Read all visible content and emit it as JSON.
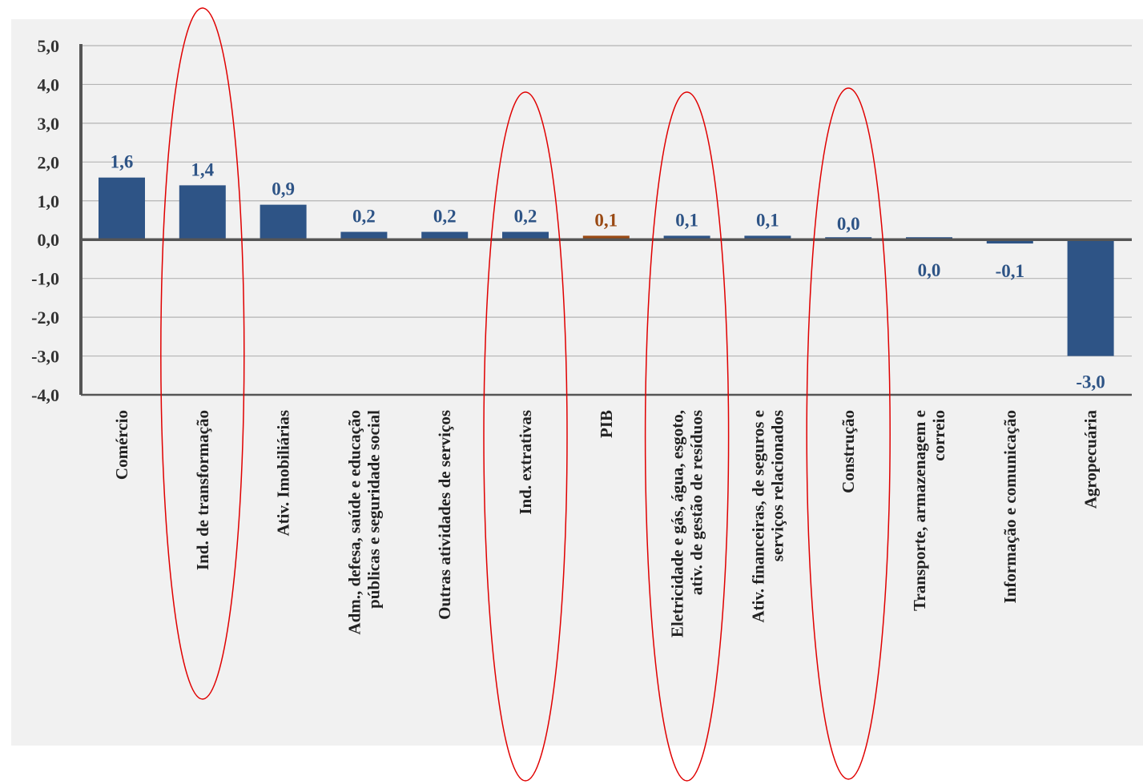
{
  "chart_data": {
    "type": "bar",
    "categories": [
      [
        "Comércio"
      ],
      [
        "Ind. de transformação"
      ],
      [
        "Ativ. Imobiliárias"
      ],
      [
        "Adm., defesa, saúde e educação",
        "públicas e seguridade social"
      ],
      [
        "Outras atividades de serviços"
      ],
      [
        "Ind. extrativas"
      ],
      [
        "PIB"
      ],
      [
        "Eletricidade e gás, água, esgoto,",
        "ativ. de gestão de resíduos"
      ],
      [
        "Ativ. financeiras, de seguros e",
        "serviços relacionados"
      ],
      [
        "Construção"
      ],
      [
        "Transporte, armazenagem e",
        "correio"
      ],
      [
        "Informação e comunicação"
      ],
      [
        "Agropecuária"
      ]
    ],
    "values": [
      1.6,
      1.4,
      0.9,
      0.2,
      0.2,
      0.2,
      0.1,
      0.1,
      0.1,
      0.0,
      0.0,
      -0.1,
      -3.0
    ],
    "value_labels": [
      "1,6",
      "1,4",
      "0,9",
      "0,2",
      "0,2",
      "0,2",
      "0,1",
      "0,1",
      "0,1",
      "0,0",
      "0,0",
      "-0,1",
      "-3,0"
    ],
    "highlight_index": 6,
    "ylim": [
      -4,
      5
    ],
    "yticks": [
      5,
      4,
      3,
      2,
      1,
      0,
      -1,
      -2,
      -3,
      -4
    ],
    "ytick_labels": [
      "5,0",
      "4,0",
      "3,0",
      "2,0",
      "1,0",
      "0,0",
      "-1,0",
      "-2,0",
      "-3,0",
      "-4,0"
    ],
    "grid": true,
    "colors": {
      "bar": "#2e5486",
      "highlight_bar": "#9a4a14",
      "label": "#2e5486",
      "highlight_label": "#9a4a14",
      "annotation_ellipse": "#e00000",
      "gridline": "#b4b4b4",
      "axis": "#555555"
    },
    "annotation_ellipses_around": [
      1,
      5,
      7,
      9
    ]
  }
}
